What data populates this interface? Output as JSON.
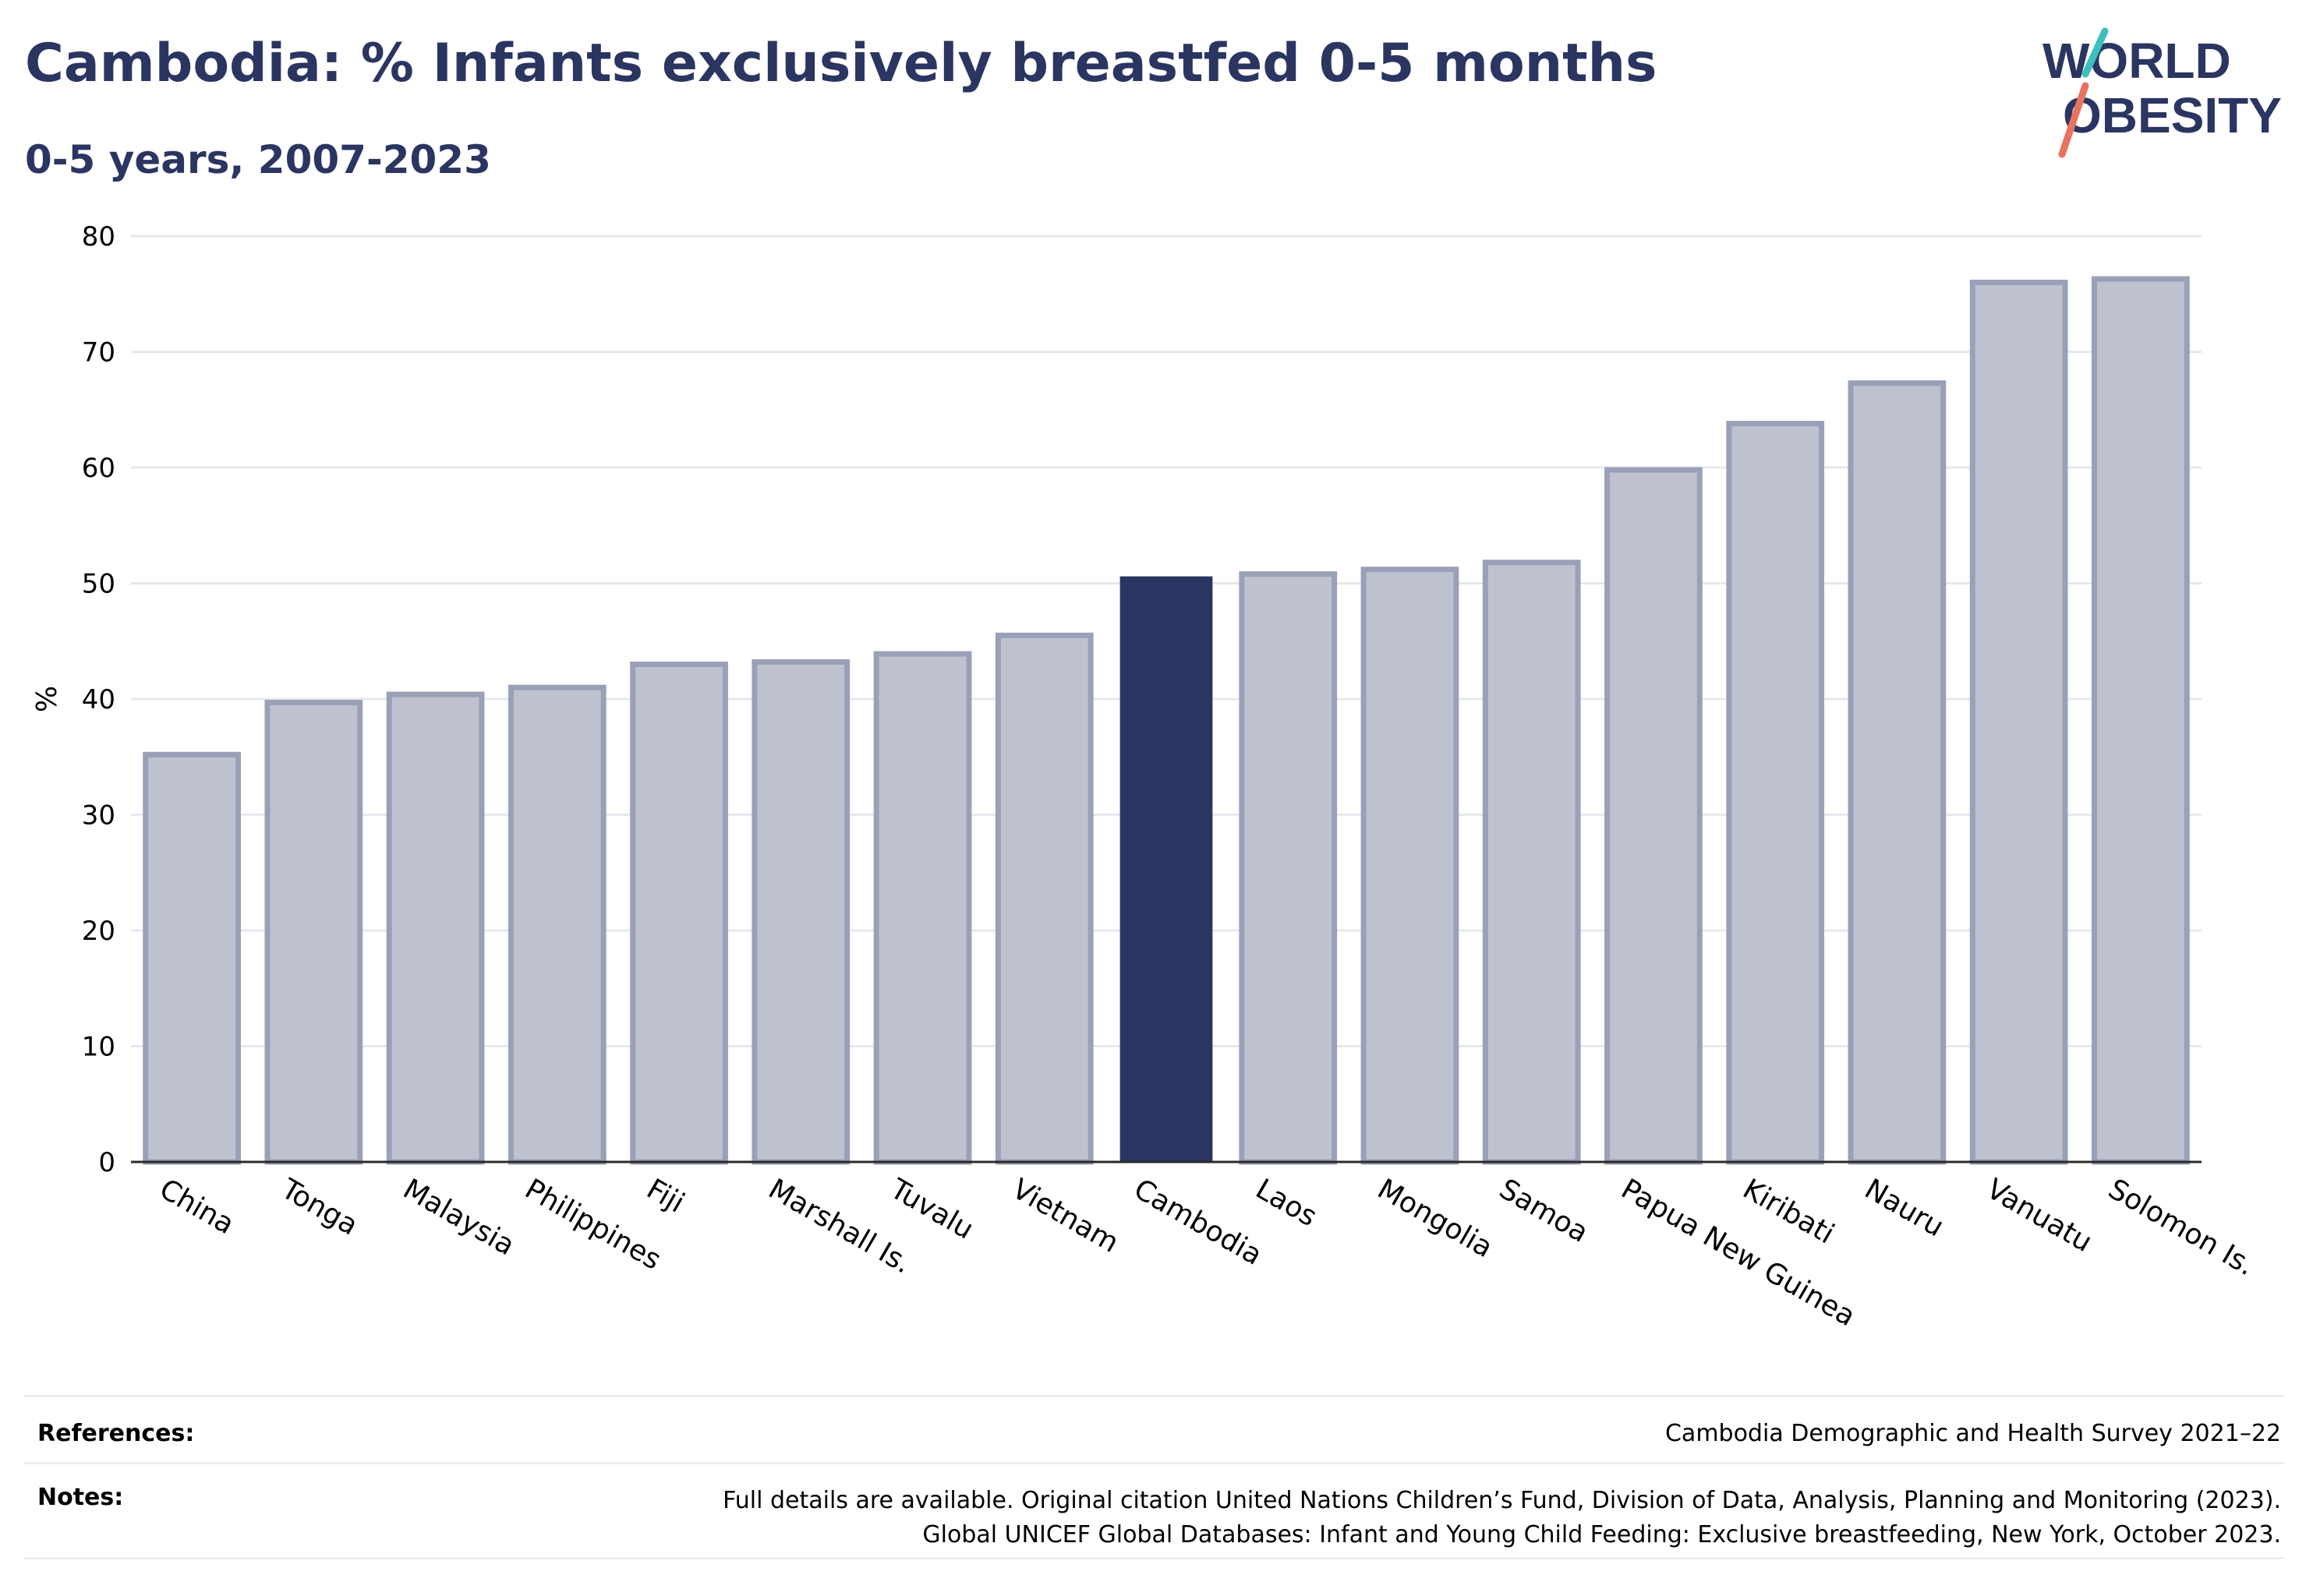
{
  "header": {
    "title": "Cambodia: % Infants exclusively breastfed 0-5 months",
    "subtitle": "0-5 years, 2007-2023"
  },
  "logo": {
    "line1": "WORLD",
    "line2": "OBESITY",
    "colors": {
      "text": "#2b3561",
      "teal": "#3cbfbf",
      "coral": "#e8735f"
    }
  },
  "chart_data": {
    "type": "bar",
    "ylabel": "%",
    "xlabel": "",
    "ylim": [
      0,
      80
    ],
    "yticks": [
      0,
      10,
      20,
      30,
      40,
      50,
      60,
      70,
      80
    ],
    "grid": true,
    "highlight": "Cambodia",
    "colors": {
      "bar": "#bec2cf",
      "bar_stroke": "#9aa0b8",
      "highlight": "#2b3561",
      "grid": "#e6e8ee",
      "axis": "#2a2a2a"
    },
    "categories": [
      "China",
      "Tonga",
      "Malaysia",
      "Philippines",
      "Fiji",
      "Marshall Is.",
      "Tuvalu",
      "Vietnam",
      "Cambodia",
      "Laos",
      "Mongolia",
      "Samoa",
      "Papua New Guinea",
      "Kiribati",
      "Nauru",
      "Vanuatu",
      "Solomon Is."
    ],
    "values": [
      35.2,
      39.7,
      40.4,
      41.0,
      43.0,
      43.2,
      43.9,
      45.5,
      50.6,
      50.8,
      51.2,
      51.8,
      59.8,
      63.8,
      67.3,
      76.0,
      76.3
    ]
  },
  "footer": {
    "references_label": "References:",
    "references_text": "Cambodia Demographic and Health Survey 2021–22",
    "notes_label": "Notes:",
    "notes_line1": "Full details are available. Original citation United Nations Children’s Fund, Division of Data, Analysis, Planning and Monitoring (2023).",
    "notes_line2": "Global UNICEF Global Databases: Infant and Young Child Feeding: Exclusive breastfeeding, New York, October 2023."
  }
}
